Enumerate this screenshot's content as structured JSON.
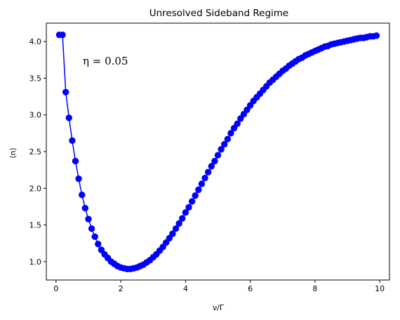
{
  "chart_data": {
    "type": "line",
    "title": "Unresolved Sideband Regime",
    "xlabel": "ν/Γ",
    "ylabel": "⟨n⟩",
    "annotation": "η = 0.05",
    "xlim": [
      -0.3,
      10.3
    ],
    "ylim": [
      0.75,
      4.25
    ],
    "xticks": [
      0,
      2,
      4,
      6,
      8,
      10
    ],
    "yticks": [
      1.0,
      1.5,
      2.0,
      2.5,
      3.0,
      3.5,
      4.0
    ],
    "grid": false,
    "legend": "none",
    "series": [
      {
        "color": "#0000ff",
        "marker": "circle",
        "x": [
          0.1,
          0.2,
          0.3,
          0.4,
          0.5,
          0.6,
          0.7,
          0.8,
          0.9,
          1.0,
          1.1,
          1.2,
          1.3,
          1.4,
          1.5,
          1.6,
          1.7,
          1.8,
          1.9,
          2.0,
          2.1,
          2.2,
          2.3,
          2.4,
          2.5,
          2.6,
          2.7,
          2.8,
          2.9,
          3.0,
          3.1,
          3.2,
          3.3,
          3.4,
          3.5,
          3.6,
          3.7,
          3.8,
          3.9,
          4.0,
          4.1,
          4.2,
          4.3,
          4.4,
          4.5,
          4.6,
          4.7,
          4.8,
          4.9,
          5.0,
          5.1,
          5.2,
          5.3,
          5.4,
          5.5,
          5.6,
          5.7,
          5.8,
          5.9,
          6.0,
          6.1,
          6.2,
          6.3,
          6.4,
          6.5,
          6.6,
          6.7,
          6.8,
          6.9,
          7.0,
          7.1,
          7.2,
          7.3,
          7.4,
          7.5,
          7.6,
          7.7,
          7.8,
          7.9,
          8.0,
          8.1,
          8.2,
          8.3,
          8.4,
          8.5,
          8.6,
          8.7,
          8.8,
          8.9,
          9.0,
          9.1,
          9.2,
          9.3,
          9.4,
          9.5,
          9.6,
          9.7,
          9.8,
          9.9
        ],
        "y": [
          4.09,
          4.09,
          3.31,
          2.96,
          2.65,
          2.37,
          2.13,
          1.91,
          1.73,
          1.58,
          1.45,
          1.34,
          1.24,
          1.16,
          1.1,
          1.05,
          1.0,
          0.97,
          0.94,
          0.92,
          0.91,
          0.9,
          0.9,
          0.91,
          0.92,
          0.94,
          0.96,
          0.99,
          1.02,
          1.06,
          1.1,
          1.15,
          1.2,
          1.26,
          1.32,
          1.38,
          1.45,
          1.52,
          1.59,
          1.67,
          1.74,
          1.82,
          1.9,
          1.98,
          2.06,
          2.14,
          2.22,
          2.3,
          2.37,
          2.45,
          2.53,
          2.6,
          2.67,
          2.75,
          2.82,
          2.88,
          2.95,
          3.01,
          3.07,
          3.13,
          3.19,
          3.24,
          3.29,
          3.34,
          3.39,
          3.44,
          3.48,
          3.52,
          3.56,
          3.6,
          3.63,
          3.67,
          3.7,
          3.73,
          3.76,
          3.78,
          3.81,
          3.83,
          3.85,
          3.87,
          3.89,
          3.91,
          3.93,
          3.94,
          3.96,
          3.97,
          3.98,
          3.99,
          4.0,
          4.01,
          4.02,
          4.03,
          4.04,
          4.05,
          4.05,
          4.06,
          4.07,
          4.07,
          4.08
        ]
      }
    ]
  }
}
